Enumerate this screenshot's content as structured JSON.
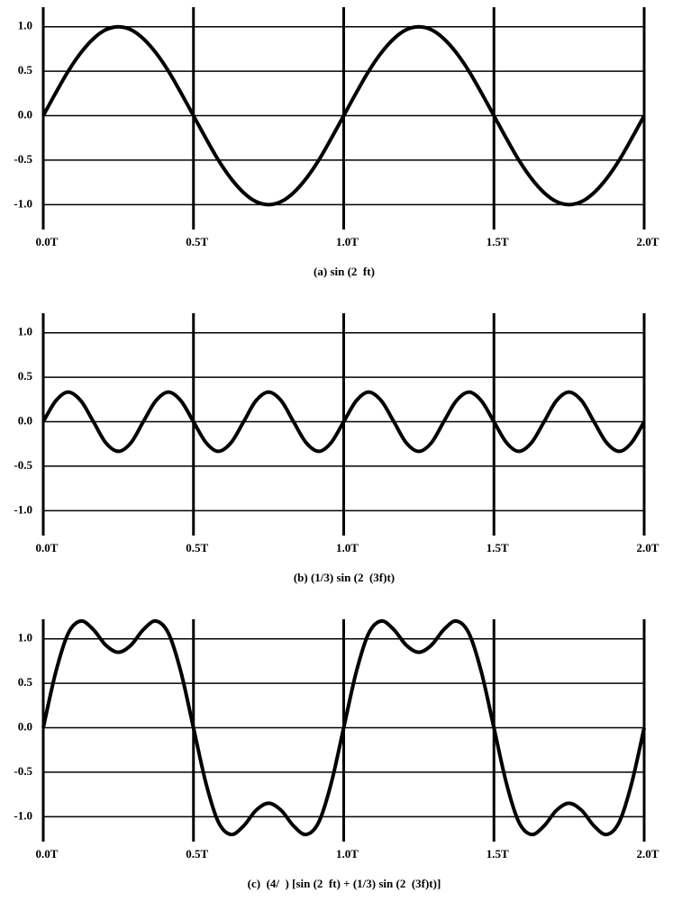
{
  "chart_data": [
    {
      "type": "line",
      "title": "(a) sin (2  ft)",
      "color": "#000000",
      "x": [
        0,
        0.042,
        0.083,
        0.125,
        0.167,
        0.208,
        0.25,
        0.292,
        0.333,
        0.375,
        0.417,
        0.458,
        0.5,
        0.542,
        0.583,
        0.625,
        0.667,
        0.708,
        0.75,
        0.792,
        0.833,
        0.875,
        0.917,
        0.958,
        1,
        1.042,
        1.083,
        1.125,
        1.167,
        1.208,
        1.25,
        1.292,
        1.333,
        1.375,
        1.417,
        1.458,
        1.5,
        1.542,
        1.583,
        1.625,
        1.667,
        1.708,
        1.75,
        1.792,
        1.833,
        1.875,
        1.917,
        1.958,
        2
      ],
      "values": [
        0,
        0.259,
        0.5,
        0.707,
        0.866,
        0.966,
        1,
        0.966,
        0.866,
        0.707,
        0.5,
        0.259,
        0,
        -0.259,
        -0.5,
        -0.707,
        -0.866,
        -0.966,
        -1,
        -0.966,
        -0.866,
        -0.707,
        -0.5,
        -0.259,
        0,
        0.259,
        0.5,
        0.707,
        0.866,
        0.966,
        1,
        0.966,
        0.866,
        0.707,
        0.5,
        0.259,
        0,
        -0.259,
        -0.5,
        -0.707,
        -0.866,
        -0.966,
        -1,
        -0.966,
        -0.866,
        -0.707,
        -0.5,
        -0.259,
        0
      ],
      "xlim": [
        0,
        2
      ],
      "ylim": [
        -1.28,
        1.22
      ],
      "xticks": [
        {
          "value": 0,
          "label": "0.0T"
        },
        {
          "value": 0.5,
          "label": "0.5T"
        },
        {
          "value": 1,
          "label": "1.0T"
        },
        {
          "value": 1.5,
          "label": "1.5T"
        },
        {
          "value": 2,
          "label": "2.0T"
        }
      ],
      "yticks": [
        {
          "value": 1,
          "label": "1.0"
        },
        {
          "value": 0.5,
          "label": "0.5"
        },
        {
          "value": 0,
          "label": "0.0"
        },
        {
          "value": -0.5,
          "label": "-0.5"
        },
        {
          "value": -1,
          "label": "-1.0"
        }
      ],
      "grid": true
    },
    {
      "type": "line",
      "title": "(b) (1/3) sin (2  (3f)t)",
      "color": "#000000",
      "x": [
        0,
        0.042,
        0.083,
        0.125,
        0.167,
        0.208,
        0.25,
        0.292,
        0.333,
        0.375,
        0.417,
        0.458,
        0.5,
        0.542,
        0.583,
        0.625,
        0.667,
        0.708,
        0.75,
        0.792,
        0.833,
        0.875,
        0.917,
        0.958,
        1,
        1.042,
        1.083,
        1.125,
        1.167,
        1.208,
        1.25,
        1.292,
        1.333,
        1.375,
        1.417,
        1.458,
        1.5,
        1.542,
        1.583,
        1.625,
        1.667,
        1.708,
        1.75,
        1.792,
        1.833,
        1.875,
        1.917,
        1.958,
        2
      ],
      "values": [
        0,
        0.236,
        0.333,
        0.236,
        0,
        -0.236,
        -0.333,
        -0.236,
        0,
        0.236,
        0.333,
        0.236,
        0,
        -0.236,
        -0.333,
        -0.236,
        0,
        0.236,
        0.333,
        0.236,
        0,
        -0.236,
        -0.333,
        -0.236,
        0,
        0.236,
        0.333,
        0.236,
        0,
        -0.236,
        -0.333,
        -0.236,
        0,
        0.236,
        0.333,
        0.236,
        0,
        -0.236,
        -0.333,
        -0.236,
        0,
        0.236,
        0.333,
        0.236,
        0,
        -0.236,
        -0.333,
        -0.236,
        0
      ],
      "xlim": [
        0,
        2
      ],
      "ylim": [
        -1.28,
        1.22
      ],
      "xticks": [
        {
          "value": 0,
          "label": "0.0T"
        },
        {
          "value": 0.5,
          "label": "0.5T"
        },
        {
          "value": 1,
          "label": "1.0T"
        },
        {
          "value": 1.5,
          "label": "1.5T"
        },
        {
          "value": 2,
          "label": "2.0T"
        }
      ],
      "yticks": [
        {
          "value": 1,
          "label": "1.0"
        },
        {
          "value": 0.5,
          "label": "0.5"
        },
        {
          "value": 0,
          "label": "0.0"
        },
        {
          "value": -0.5,
          "label": "-0.5"
        },
        {
          "value": -1,
          "label": "-1.0"
        }
      ],
      "grid": true
    },
    {
      "type": "line",
      "title": "(c)  (4/  ) [sin (2  ft) + (1/3) sin (2  (3f)t)]",
      "color": "#000000",
      "x": [
        0,
        0.042,
        0.083,
        0.125,
        0.167,
        0.208,
        0.25,
        0.292,
        0.333,
        0.375,
        0.417,
        0.458,
        0.5,
        0.542,
        0.583,
        0.625,
        0.667,
        0.708,
        0.75,
        0.792,
        0.833,
        0.875,
        0.917,
        0.958,
        1,
        1.042,
        1.083,
        1.125,
        1.167,
        1.208,
        1.25,
        1.292,
        1.333,
        1.375,
        1.417,
        1.458,
        1.5,
        1.542,
        1.583,
        1.625,
        1.667,
        1.708,
        1.75,
        1.792,
        1.833,
        1.875,
        1.917,
        1.958,
        2
      ],
      "values": [
        0,
        0.63,
        1.061,
        1.2,
        1.103,
        0.929,
        0.849,
        0.929,
        1.103,
        1.2,
        1.061,
        0.63,
        0,
        -0.63,
        -1.061,
        -1.2,
        -1.103,
        -0.929,
        -0.849,
        -0.929,
        -1.103,
        -1.2,
        -1.061,
        -0.63,
        0,
        0.63,
        1.061,
        1.2,
        1.103,
        0.929,
        0.849,
        0.929,
        1.103,
        1.2,
        1.061,
        0.63,
        0,
        -0.63,
        -1.061,
        -1.2,
        -1.103,
        -0.929,
        -0.849,
        -0.929,
        -1.103,
        -1.2,
        -1.061,
        -0.63,
        0
      ],
      "xlim": [
        0,
        2
      ],
      "ylim": [
        -1.28,
        1.22
      ],
      "xticks": [
        {
          "value": 0,
          "label": "0.0T"
        },
        {
          "value": 0.5,
          "label": "0.5T"
        },
        {
          "value": 1,
          "label": "1.0T"
        },
        {
          "value": 1.5,
          "label": "1.5T"
        },
        {
          "value": 2,
          "label": "2.0T"
        }
      ],
      "yticks": [
        {
          "value": 1,
          "label": "1.0"
        },
        {
          "value": 0.5,
          "label": "0.5"
        },
        {
          "value": 0,
          "label": "0.0"
        },
        {
          "value": -0.5,
          "label": "-0.5"
        },
        {
          "value": -1,
          "label": "-1.0"
        }
      ],
      "grid": true
    }
  ]
}
